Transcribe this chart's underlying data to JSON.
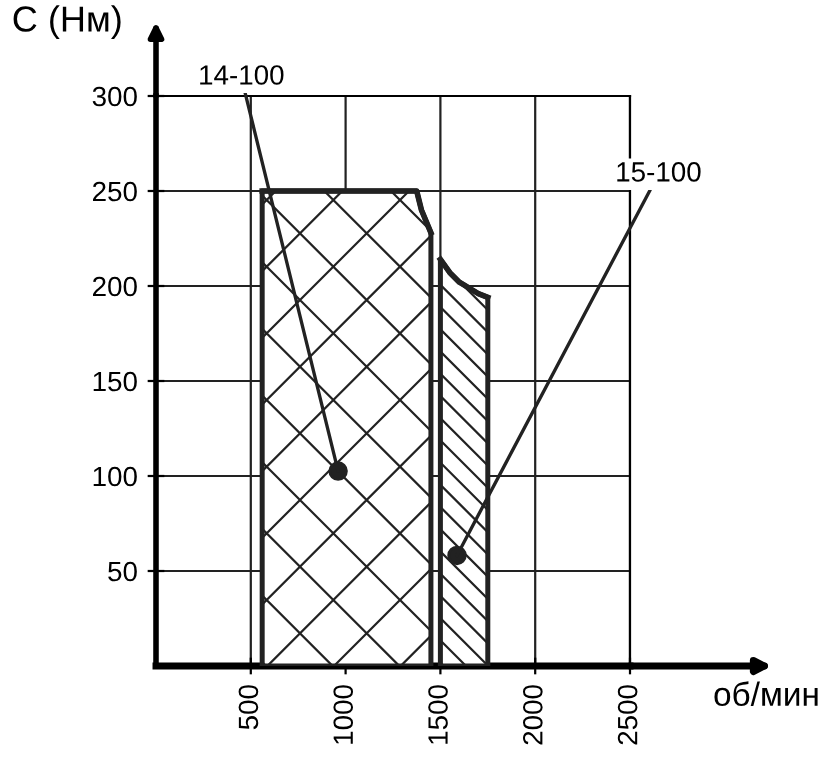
{
  "chart_data": {
    "type": "area",
    "xlabel": "об/мин",
    "ylabel": "C (Нм)",
    "xlim": [
      0,
      2500
    ],
    "ylim": [
      0,
      300
    ],
    "xticks": [
      500,
      1000,
      1500,
      2000,
      2500
    ],
    "yticks": [
      50,
      100,
      150,
      200,
      250,
      300
    ],
    "grid": true,
    "marker": "none",
    "series": [
      {
        "name": "14-100",
        "color": "#222222",
        "x": [
          560,
          1375,
          1400,
          1450
        ],
        "values": [
          250,
          250,
          240,
          228
        ]
      },
      {
        "name": "15-100",
        "color": "#222222",
        "x": [
          1500,
          1550,
          1600,
          1700,
          1750
        ],
        "values": [
          214,
          207,
          202,
          196,
          194
        ]
      }
    ]
  }
}
